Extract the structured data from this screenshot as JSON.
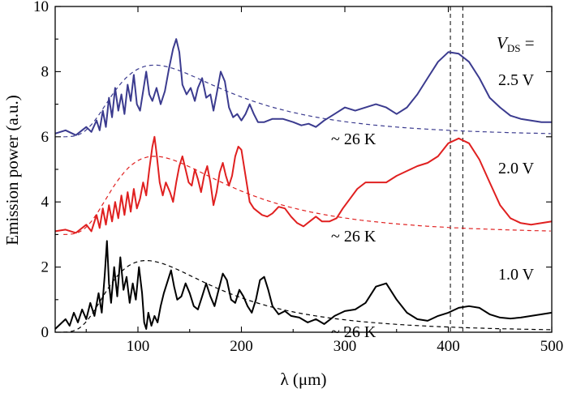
{
  "chart_data": {
    "type": "line",
    "xlabel": "λ (μm)",
    "ylabel": "Emission power (a.u.)",
    "xlim": [
      20,
      500
    ],
    "ylim": [
      0,
      10
    ],
    "xticks": [
      100,
      200,
      300,
      400,
      500
    ],
    "yticks": [
      0,
      2,
      4,
      6,
      8,
      10
    ],
    "grid": false,
    "legend_title": {
      "main": "V",
      "sub": "DS",
      "suffix": " ="
    },
    "reference_lines_x": [
      402,
      414
    ],
    "series": [
      {
        "name": "2.5 V",
        "color": "#3b3b8f",
        "points": [
          [
            20,
            6.1
          ],
          [
            30,
            6.2
          ],
          [
            40,
            6.05
          ],
          [
            50,
            6.3
          ],
          [
            55,
            6.15
          ],
          [
            60,
            6.5
          ],
          [
            63,
            6.2
          ],
          [
            66,
            6.8
          ],
          [
            69,
            6.3
          ],
          [
            72,
            7.2
          ],
          [
            75,
            6.6
          ],
          [
            78,
            7.5
          ],
          [
            81,
            6.8
          ],
          [
            84,
            7.3
          ],
          [
            87,
            6.7
          ],
          [
            90,
            7.6
          ],
          [
            93,
            7.1
          ],
          [
            96,
            7.9
          ],
          [
            99,
            7.0
          ],
          [
            102,
            6.8
          ],
          [
            105,
            7.4
          ],
          [
            108,
            8.0
          ],
          [
            111,
            7.3
          ],
          [
            114,
            7.1
          ],
          [
            118,
            7.5
          ],
          [
            122,
            7.0
          ],
          [
            126,
            7.4
          ],
          [
            130,
            8.1
          ],
          [
            134,
            8.7
          ],
          [
            137,
            9.0
          ],
          [
            140,
            8.6
          ],
          [
            143,
            7.6
          ],
          [
            147,
            7.3
          ],
          [
            151,
            7.5
          ],
          [
            155,
            7.1
          ],
          [
            158,
            7.5
          ],
          [
            162,
            7.8
          ],
          [
            166,
            7.2
          ],
          [
            170,
            7.3
          ],
          [
            173,
            6.8
          ],
          [
            176,
            7.3
          ],
          [
            180,
            8.0
          ],
          [
            184,
            7.7
          ],
          [
            188,
            6.9
          ],
          [
            192,
            6.6
          ],
          [
            196,
            6.7
          ],
          [
            200,
            6.5
          ],
          [
            204,
            6.7
          ],
          [
            208,
            7.0
          ],
          [
            212,
            6.7
          ],
          [
            216,
            6.45
          ],
          [
            222,
            6.45
          ],
          [
            230,
            6.55
          ],
          [
            240,
            6.55
          ],
          [
            250,
            6.45
          ],
          [
            258,
            6.35
          ],
          [
            265,
            6.4
          ],
          [
            272,
            6.3
          ],
          [
            280,
            6.5
          ],
          [
            290,
            6.7
          ],
          [
            300,
            6.9
          ],
          [
            310,
            6.8
          ],
          [
            320,
            6.9
          ],
          [
            330,
            7.0
          ],
          [
            340,
            6.9
          ],
          [
            350,
            6.7
          ],
          [
            360,
            6.9
          ],
          [
            370,
            7.3
          ],
          [
            380,
            7.8
          ],
          [
            390,
            8.3
          ],
          [
            400,
            8.6
          ],
          [
            410,
            8.55
          ],
          [
            420,
            8.3
          ],
          [
            430,
            7.8
          ],
          [
            440,
            7.2
          ],
          [
            450,
            6.9
          ],
          [
            460,
            6.65
          ],
          [
            470,
            6.55
          ],
          [
            480,
            6.5
          ],
          [
            490,
            6.45
          ],
          [
            500,
            6.45
          ]
        ]
      },
      {
        "name": "2.0 V",
        "color": "#e02020",
        "points": [
          [
            20,
            3.1
          ],
          [
            30,
            3.15
          ],
          [
            40,
            3.05
          ],
          [
            50,
            3.3
          ],
          [
            55,
            3.1
          ],
          [
            60,
            3.6
          ],
          [
            63,
            3.2
          ],
          [
            66,
            3.8
          ],
          [
            69,
            3.3
          ],
          [
            72,
            3.9
          ],
          [
            75,
            3.4
          ],
          [
            78,
            4.0
          ],
          [
            81,
            3.5
          ],
          [
            84,
            4.2
          ],
          [
            87,
            3.6
          ],
          [
            90,
            4.3
          ],
          [
            93,
            3.7
          ],
          [
            96,
            4.4
          ],
          [
            99,
            3.8
          ],
          [
            102,
            4.1
          ],
          [
            105,
            4.6
          ],
          [
            108,
            4.2
          ],
          [
            111,
            5.0
          ],
          [
            114,
            5.7
          ],
          [
            116,
            6.0
          ],
          [
            118,
            5.5
          ],
          [
            121,
            4.6
          ],
          [
            124,
            4.2
          ],
          [
            127,
            4.6
          ],
          [
            131,
            4.3
          ],
          [
            134,
            4.0
          ],
          [
            137,
            4.6
          ],
          [
            140,
            5.1
          ],
          [
            143,
            5.4
          ],
          [
            146,
            5.0
          ],
          [
            149,
            4.6
          ],
          [
            152,
            4.5
          ],
          [
            155,
            5.0
          ],
          [
            158,
            4.7
          ],
          [
            161,
            4.3
          ],
          [
            164,
            4.8
          ],
          [
            167,
            5.1
          ],
          [
            170,
            4.6
          ],
          [
            173,
            3.9
          ],
          [
            176,
            4.3
          ],
          [
            179,
            4.9
          ],
          [
            182,
            5.2
          ],
          [
            185,
            4.8
          ],
          [
            188,
            4.5
          ],
          [
            191,
            4.8
          ],
          [
            194,
            5.4
          ],
          [
            197,
            5.7
          ],
          [
            200,
            5.6
          ],
          [
            204,
            4.8
          ],
          [
            208,
            4.0
          ],
          [
            212,
            3.8
          ],
          [
            216,
            3.7
          ],
          [
            220,
            3.6
          ],
          [
            225,
            3.55
          ],
          [
            230,
            3.65
          ],
          [
            236,
            3.85
          ],
          [
            242,
            3.8
          ],
          [
            248,
            3.55
          ],
          [
            254,
            3.35
          ],
          [
            260,
            3.25
          ],
          [
            266,
            3.4
          ],
          [
            272,
            3.55
          ],
          [
            278,
            3.4
          ],
          [
            285,
            3.4
          ],
          [
            292,
            3.5
          ],
          [
            298,
            3.8
          ],
          [
            305,
            4.1
          ],
          [
            312,
            4.4
          ],
          [
            320,
            4.6
          ],
          [
            330,
            4.6
          ],
          [
            340,
            4.6
          ],
          [
            350,
            4.8
          ],
          [
            360,
            4.95
          ],
          [
            370,
            5.1
          ],
          [
            380,
            5.2
          ],
          [
            390,
            5.4
          ],
          [
            400,
            5.8
          ],
          [
            410,
            5.95
          ],
          [
            420,
            5.8
          ],
          [
            430,
            5.3
          ],
          [
            440,
            4.6
          ],
          [
            450,
            3.9
          ],
          [
            460,
            3.5
          ],
          [
            470,
            3.35
          ],
          [
            480,
            3.3
          ],
          [
            490,
            3.35
          ],
          [
            500,
            3.4
          ]
        ]
      },
      {
        "name": "1.0 V",
        "color": "#000000",
        "points": [
          [
            20,
            0.1
          ],
          [
            30,
            0.4
          ],
          [
            34,
            0.2
          ],
          [
            38,
            0.6
          ],
          [
            42,
            0.3
          ],
          [
            46,
            0.7
          ],
          [
            50,
            0.4
          ],
          [
            54,
            0.9
          ],
          [
            58,
            0.5
          ],
          [
            62,
            1.2
          ],
          [
            65,
            0.6
          ],
          [
            68,
            1.8
          ],
          [
            70,
            2.8
          ],
          [
            72,
            1.5
          ],
          [
            74,
            0.9
          ],
          [
            77,
            2.0
          ],
          [
            80,
            1.1
          ],
          [
            83,
            2.3
          ],
          [
            86,
            1.3
          ],
          [
            89,
            1.7
          ],
          [
            92,
            0.9
          ],
          [
            95,
            1.5
          ],
          [
            98,
            1.0
          ],
          [
            101,
            2.0
          ],
          [
            104,
            1.2
          ],
          [
            106,
            0.3
          ],
          [
            108,
            0.1
          ],
          [
            110,
            0.6
          ],
          [
            113,
            0.2
          ],
          [
            116,
            0.5
          ],
          [
            119,
            0.3
          ],
          [
            122,
            0.8
          ],
          [
            125,
            1.2
          ],
          [
            129,
            1.6
          ],
          [
            132,
            1.9
          ],
          [
            135,
            1.4
          ],
          [
            138,
            1.0
          ],
          [
            142,
            1.1
          ],
          [
            146,
            1.5
          ],
          [
            150,
            1.2
          ],
          [
            154,
            0.8
          ],
          [
            158,
            0.7
          ],
          [
            162,
            1.1
          ],
          [
            166,
            1.5
          ],
          [
            170,
            1.1
          ],
          [
            174,
            0.8
          ],
          [
            178,
            1.3
          ],
          [
            182,
            1.8
          ],
          [
            186,
            1.6
          ],
          [
            190,
            1.0
          ],
          [
            194,
            0.9
          ],
          [
            198,
            1.3
          ],
          [
            202,
            1.1
          ],
          [
            206,
            0.8
          ],
          [
            210,
            0.6
          ],
          [
            214,
            1.0
          ],
          [
            218,
            1.6
          ],
          [
            222,
            1.7
          ],
          [
            226,
            1.3
          ],
          [
            230,
            0.8
          ],
          [
            236,
            0.55
          ],
          [
            242,
            0.65
          ],
          [
            248,
            0.5
          ],
          [
            256,
            0.45
          ],
          [
            264,
            0.3
          ],
          [
            272,
            0.4
          ],
          [
            280,
            0.25
          ],
          [
            290,
            0.5
          ],
          [
            300,
            0.65
          ],
          [
            310,
            0.7
          ],
          [
            320,
            0.9
          ],
          [
            330,
            1.4
          ],
          [
            340,
            1.5
          ],
          [
            350,
            1.0
          ],
          [
            360,
            0.6
          ],
          [
            370,
            0.4
          ],
          [
            380,
            0.35
          ],
          [
            390,
            0.5
          ],
          [
            400,
            0.6
          ],
          [
            410,
            0.75
          ],
          [
            420,
            0.8
          ],
          [
            430,
            0.75
          ],
          [
            440,
            0.55
          ],
          [
            450,
            0.45
          ],
          [
            460,
            0.42
          ],
          [
            470,
            0.45
          ],
          [
            480,
            0.5
          ],
          [
            490,
            0.55
          ],
          [
            500,
            0.6
          ]
        ]
      }
    ],
    "fits": [
      {
        "color": "#3b3b8f",
        "baseline": 6.0,
        "peak_x": 116,
        "amplitude": 2.2,
        "label": "~ 26 K"
      },
      {
        "color": "#e02020",
        "baseline": 3.0,
        "peak_x": 116,
        "amplitude": 2.4,
        "label": "~ 26 K"
      },
      {
        "color": "#000000",
        "baseline": 0.0,
        "peak_x": 108,
        "amplitude": 2.2,
        "label": "~ 26 K"
      }
    ]
  }
}
